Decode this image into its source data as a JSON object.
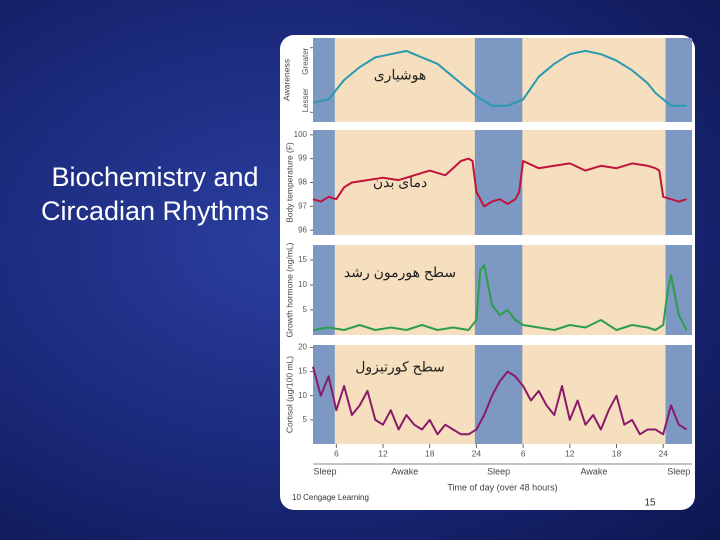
{
  "slide": {
    "title": "Biochemistry and Circadian Rhythms",
    "credit": "10 Cengage Learning",
    "page_number": "15"
  },
  "chart_data": [
    {
      "type": "line",
      "ylabel": "Awareness",
      "annotation": "هوشیاری",
      "color": "#2a9ab0",
      "xlim": [
        3,
        51.7
      ],
      "ylim": [
        -0.15,
        1.15
      ],
      "yticks": [
        {
          "value": 1,
          "label": "Greater"
        },
        {
          "value": 0,
          "label": "Lesser"
        }
      ],
      "x": [
        3,
        5,
        7,
        9,
        11,
        13,
        15,
        17,
        19,
        21,
        23,
        24,
        26,
        28,
        30,
        32,
        34,
        36,
        38,
        40,
        42,
        44,
        46,
        47,
        49,
        51
      ],
      "values": [
        0.15,
        0.2,
        0.5,
        0.7,
        0.85,
        0.9,
        0.95,
        0.85,
        0.75,
        0.55,
        0.35,
        0.25,
        0.1,
        0.1,
        0.2,
        0.55,
        0.75,
        0.9,
        0.95,
        0.9,
        0.8,
        0.65,
        0.45,
        0.3,
        0.1,
        0.1
      ]
    },
    {
      "type": "line",
      "ylabel": "Body temperature (F)",
      "annotation": "دمای بدن",
      "color": "#c0143c",
      "xlim": [
        3,
        51.7
      ],
      "ylim": [
        95.8,
        100.2
      ],
      "yticks": [
        96,
        97,
        98,
        99,
        100
      ],
      "x": [
        3,
        4,
        5,
        6,
        7,
        8,
        10,
        12,
        14,
        16,
        18,
        20,
        21,
        22,
        23,
        23.5,
        24,
        25,
        26,
        27,
        28,
        29,
        29.5,
        30,
        32,
        34,
        36,
        38,
        40,
        42,
        44,
        46,
        47,
        47.5,
        48,
        49,
        50,
        51
      ],
      "values": [
        97.3,
        97.2,
        97.4,
        97.3,
        97.8,
        98.0,
        98.1,
        98.2,
        98.1,
        98.3,
        98.5,
        98.3,
        98.6,
        98.9,
        99.0,
        98.9,
        97.6,
        97.0,
        97.2,
        97.3,
        97.1,
        97.3,
        97.6,
        98.9,
        98.6,
        98.7,
        98.8,
        98.5,
        98.7,
        98.6,
        98.8,
        98.7,
        98.6,
        98.5,
        97.4,
        97.3,
        97.2,
        97.3
      ]
    },
    {
      "type": "line",
      "ylabel": "Growth hormone (ng/mL)",
      "annotation": "سطح هورمون رشد",
      "color": "#2e9e4a",
      "xlim": [
        3,
        51.7
      ],
      "ylim": [
        0,
        18
      ],
      "yticks": [
        5,
        10,
        15
      ],
      "x": [
        3,
        5,
        7,
        9,
        11,
        13,
        15,
        17,
        19,
        21,
        23,
        24,
        24.5,
        25,
        26,
        27,
        28,
        29,
        30,
        32,
        34,
        36,
        38,
        40,
        42,
        44,
        46,
        47,
        48,
        48.5,
        49,
        50,
        51
      ],
      "values": [
        1,
        1.5,
        1,
        2,
        1,
        1.5,
        1,
        2,
        1,
        1.5,
        1,
        3,
        13,
        14,
        6,
        4,
        5,
        3,
        2,
        1.5,
        1,
        2,
        1.5,
        3,
        1,
        2,
        1.5,
        1,
        2,
        8,
        12,
        4,
        1
      ]
    },
    {
      "type": "line",
      "ylabel": "Cortisol (µg/100 mL)",
      "annotation": "سطح کورتیزول",
      "color": "#8b1a6b",
      "xlim": [
        3,
        51.7
      ],
      "ylim": [
        0,
        20.5
      ],
      "yticks": [
        5,
        10,
        15,
        20
      ],
      "xlabel": "Time of day (over 48 hours)",
      "xticks": [
        6,
        12,
        18,
        24,
        {
          "value": 30,
          "label": "6"
        },
        {
          "value": 36,
          "label": "12"
        },
        {
          "value": 42,
          "label": "18"
        },
        {
          "value": 48,
          "label": "24"
        }
      ],
      "periods": [
        {
          "label": "Sleep",
          "range": [
            3,
            5.8
          ],
          "shaded": true
        },
        {
          "label": "Awake",
          "range": [
            5.8,
            23.8
          ],
          "shaded": false
        },
        {
          "label": "Sleep",
          "range": [
            23.8,
            29.9
          ],
          "shaded": true
        },
        {
          "label": "Awake",
          "range": [
            29.9,
            48.3
          ],
          "shaded": false
        },
        {
          "label": "Sleep",
          "range": [
            48.3,
            51.7
          ],
          "shaded": true
        }
      ],
      "x": [
        3,
        4,
        5,
        6,
        7,
        8,
        9,
        10,
        11,
        12,
        13,
        14,
        15,
        16,
        17,
        18,
        19,
        20,
        21,
        22,
        23,
        24,
        25,
        26,
        27,
        28,
        29,
        30,
        31,
        32,
        33,
        34,
        35,
        36,
        37,
        38,
        39,
        40,
        41,
        42,
        43,
        44,
        45,
        46,
        47,
        48,
        49,
        50,
        51
      ],
      "values": [
        16,
        10,
        14,
        7,
        12,
        6,
        8,
        11,
        5,
        4,
        7,
        3,
        6,
        4,
        3,
        5,
        2,
        4,
        3,
        2,
        2,
        3,
        6,
        10,
        13,
        15,
        14,
        12,
        9,
        11,
        8,
        6,
        12,
        5,
        9,
        4,
        6,
        3,
        7,
        10,
        4,
        5,
        2,
        3,
        3,
        2,
        8,
        4,
        3
      ]
    }
  ]
}
